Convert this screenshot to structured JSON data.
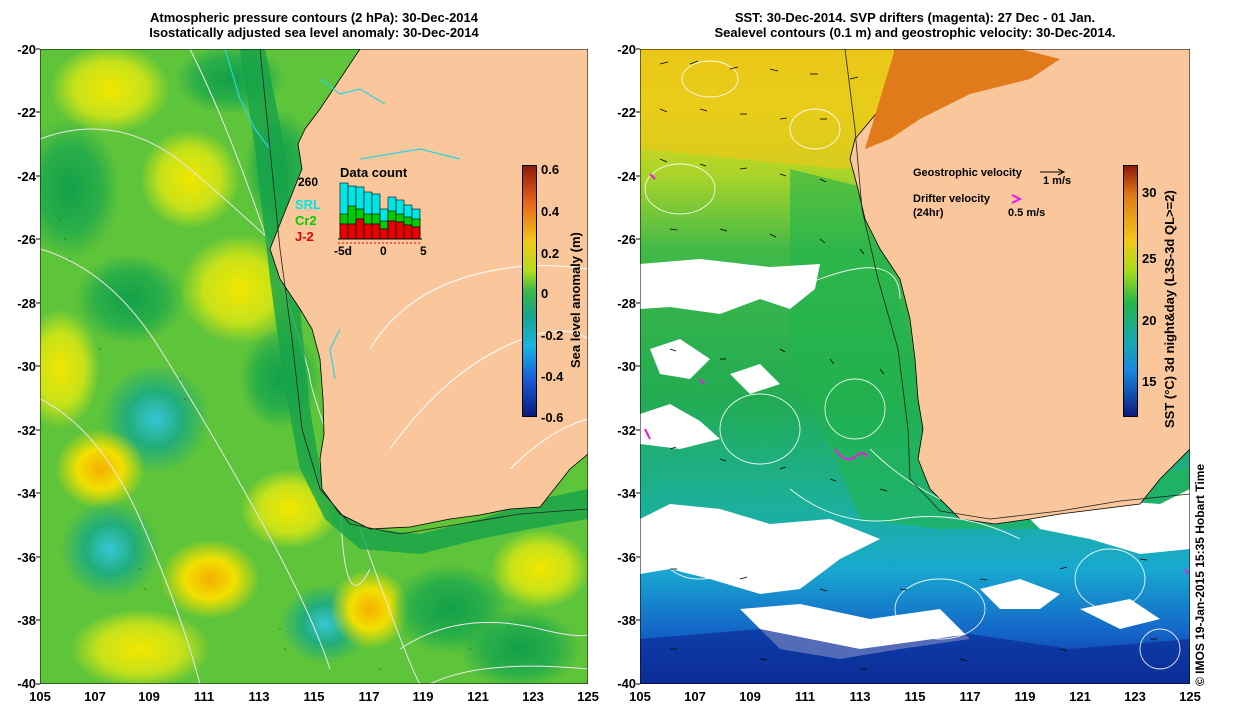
{
  "left_panel": {
    "title_line1": "Atmospheric pressure contours (2 hPa): 30-Dec-2014",
    "title_line2": "Isostatically adjusted sea level anomaly: 30-Dec-2014",
    "colorbar_label": "Sea level anomaly (m)",
    "colorbar_ticks": [
      "0.6",
      "0.4",
      "0.2",
      "0",
      "-0.2",
      "-0.4",
      "-0.6"
    ],
    "inset": {
      "title": "Data count",
      "max_count": "260",
      "legend": [
        "SRL",
        "Cr2",
        "J-2"
      ],
      "x_ticks": [
        "-5d",
        "0",
        "5"
      ]
    }
  },
  "right_panel": {
    "title_line1": "SST: 30-Dec-2014. SVP drifters (magenta): 27 Dec - 01 Jan.",
    "title_line2": "Sealevel contours (0.1 m) and geostrophic velocity: 30-Dec-2014.",
    "colorbar_label": "SST (°C) 3d night&day (L3S-3d QL>=2)",
    "colorbar_ticks": [
      "30",
      "25",
      "20",
      "15"
    ],
    "geo_velocity_label": "Geostrophic velocity",
    "geo_velocity_scale": "1 m/s",
    "drifter_label_line1": "Drifter velocity",
    "drifter_label_line2": "(24hr)",
    "drifter_scale": "0.5 m/s"
  },
  "y_axis_labels": [
    "-20",
    "-22",
    "-24",
    "-26",
    "-28",
    "-30",
    "-32",
    "-34",
    "-36",
    "-38",
    "-40"
  ],
  "x_axis_labels": [
    "105",
    "107",
    "109",
    "111",
    "113",
    "115",
    "117",
    "119",
    "121",
    "123",
    "125"
  ],
  "credit": "© IMOS 19-Jan-2015 15:35 Hobart Time",
  "colors": {
    "land": "#f9c79b",
    "sla_green": "#3cb846",
    "sla_yellowgreen": "#a8dc1e",
    "sst_warm": "#f4b81c",
    "sst_green": "#22b44c",
    "sst_blue": "#1576d8",
    "drifter": "#e81ce8",
    "inset_srl": "#00e6e6",
    "inset_cr2": "#00cc00",
    "inset_j2": "#e60000"
  }
}
